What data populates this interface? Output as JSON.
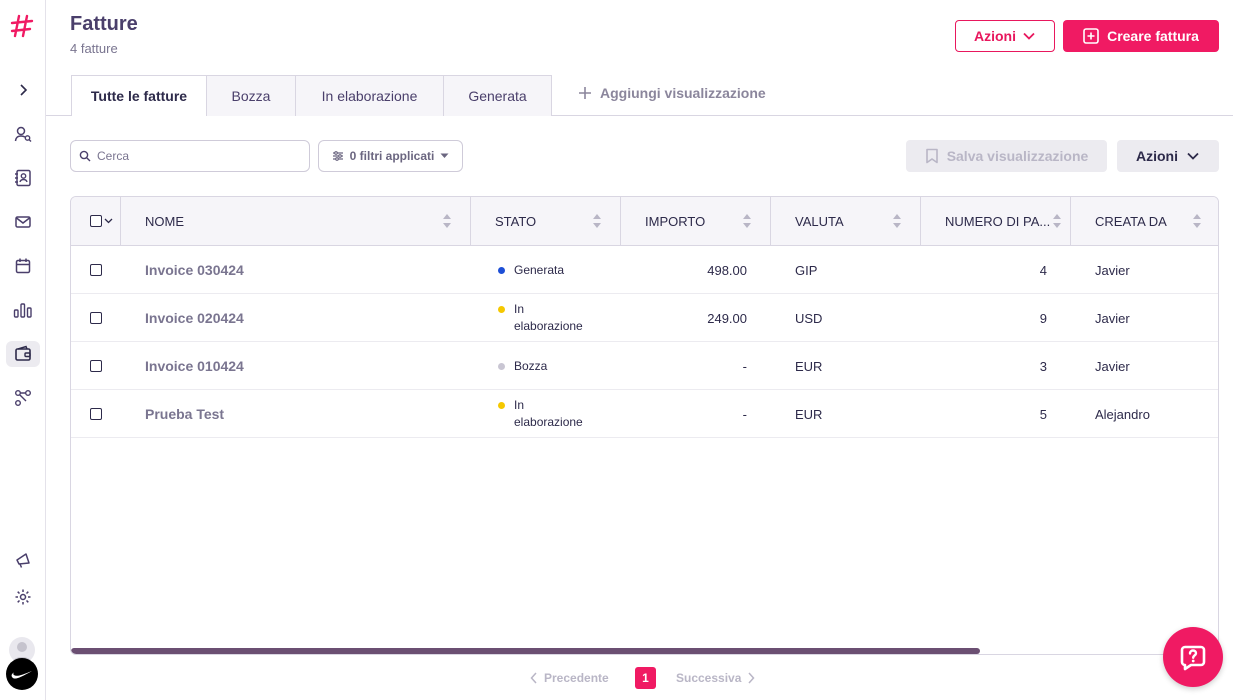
{
  "header": {
    "title": "Fatture",
    "count": "4 fatture",
    "actions_label": "Azioni",
    "create_label": "Creare fattura"
  },
  "tabs": [
    {
      "label": "Tutte le fatture",
      "active": true
    },
    {
      "label": "Bozza",
      "active": false
    },
    {
      "label": "In elaborazione",
      "active": false
    },
    {
      "label": "Generata",
      "active": false
    }
  ],
  "add_view_label": "Aggiungi visualizzazione",
  "toolbar": {
    "search_placeholder": "Cerca",
    "filters_label": "0 filtri applicati",
    "save_view_label": "Salva visualizzazione",
    "actions_label": "Azioni"
  },
  "table": {
    "columns": [
      "NOME",
      "STATO",
      "IMPORTO",
      "VALUTA",
      "NUMERO DI PA...",
      "CREATA DA"
    ],
    "rows": [
      {
        "name": "Invoice 030424",
        "status_line1": "Generata",
        "status_line2": "",
        "status_color": "#1d4fd6",
        "amount": "498.00",
        "currency": "GIP",
        "number": "4",
        "created_by": "Javier"
      },
      {
        "name": "Invoice 020424",
        "status_line1": "In",
        "status_line2": "elaborazione",
        "status_color": "#f5c800",
        "amount": "249.00",
        "currency": "USD",
        "number": "9",
        "created_by": "Javier"
      },
      {
        "name": "Invoice 010424",
        "status_line1": "Bozza",
        "status_line2": "",
        "status_color": "#c9c6d3",
        "amount": "-",
        "currency": "EUR",
        "number": "3",
        "created_by": "Javier"
      },
      {
        "name": "Prueba Test",
        "status_line1": "In",
        "status_line2": "elaborazione",
        "status_color": "#f5c800",
        "amount": "-",
        "currency": "EUR",
        "number": "5",
        "created_by": "Alejandro"
      }
    ]
  },
  "pagination": {
    "prev_label": "Precedente",
    "current_page": "1",
    "next_label": "Successiva"
  },
  "colors": {
    "accent": "#f01a63",
    "title": "#4a3f6b"
  },
  "icons": [
    "logo-icon",
    "chevron-right-icon",
    "contacts-icon",
    "address-book-icon",
    "mail-icon",
    "calendar-icon",
    "bar-chart-icon",
    "wallet-icon",
    "workflow-icon",
    "megaphone-icon",
    "gear-icon",
    "search-icon",
    "sliders-icon",
    "bookmark-icon",
    "chevron-down-icon",
    "plus-icon",
    "help-icon"
  ]
}
